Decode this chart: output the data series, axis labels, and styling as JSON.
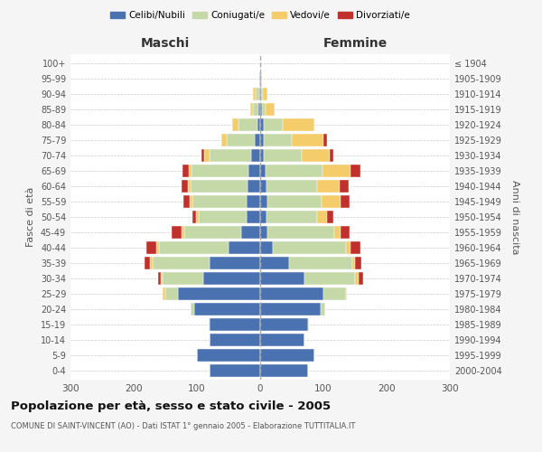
{
  "age_groups": [
    "0-4",
    "5-9",
    "10-14",
    "15-19",
    "20-24",
    "25-29",
    "30-34",
    "35-39",
    "40-44",
    "45-49",
    "50-54",
    "55-59",
    "60-64",
    "65-69",
    "70-74",
    "75-79",
    "80-84",
    "85-89",
    "90-94",
    "95-99",
    "100+"
  ],
  "birth_years": [
    "2000-2004",
    "1995-1999",
    "1990-1994",
    "1985-1989",
    "1980-1984",
    "1975-1979",
    "1970-1974",
    "1965-1969",
    "1960-1964",
    "1955-1959",
    "1950-1954",
    "1945-1949",
    "1940-1944",
    "1935-1939",
    "1930-1934",
    "1925-1929",
    "1920-1924",
    "1915-1919",
    "1910-1914",
    "1905-1909",
    "≤ 1904"
  ],
  "colors": {
    "celibi": "#4a72b0",
    "coniugati": "#c5d9a8",
    "vedovi": "#f5cc6a",
    "divorziati": "#c0312b"
  },
  "maschi": {
    "celibi": [
      80,
      100,
      80,
      80,
      105,
      130,
      90,
      80,
      50,
      30,
      22,
      22,
      20,
      18,
      15,
      8,
      5,
      3,
      2,
      1,
      0
    ],
    "coniugati": [
      0,
      0,
      0,
      2,
      5,
      20,
      65,
      90,
      110,
      90,
      75,
      85,
      90,
      90,
      65,
      45,
      30,
      8,
      5,
      0,
      0
    ],
    "vedovi": [
      0,
      0,
      0,
      0,
      0,
      5,
      2,
      5,
      5,
      5,
      5,
      5,
      5,
      5,
      8,
      8,
      10,
      5,
      5,
      0,
      0
    ],
    "divorziati": [
      0,
      0,
      0,
      0,
      0,
      0,
      5,
      8,
      15,
      15,
      5,
      10,
      10,
      10,
      5,
      0,
      0,
      0,
      0,
      0,
      0
    ]
  },
  "femmine": {
    "celibi": [
      75,
      85,
      70,
      75,
      95,
      100,
      70,
      45,
      20,
      12,
      10,
      12,
      10,
      8,
      5,
      5,
      5,
      3,
      2,
      1,
      0
    ],
    "coniugati": [
      0,
      0,
      0,
      2,
      8,
      35,
      80,
      100,
      115,
      105,
      80,
      85,
      80,
      90,
      60,
      45,
      30,
      5,
      2,
      0,
      0
    ],
    "vedovi": [
      0,
      0,
      0,
      0,
      0,
      2,
      5,
      5,
      8,
      10,
      15,
      30,
      35,
      45,
      45,
      50,
      50,
      15,
      8,
      2,
      0
    ],
    "divorziati": [
      0,
      0,
      0,
      0,
      0,
      0,
      8,
      10,
      15,
      15,
      10,
      15,
      15,
      15,
      5,
      5,
      0,
      0,
      0,
      0,
      0
    ]
  },
  "title": "Popolazione per età, sesso e stato civile - 2005",
  "subtitle": "COMUNE DI SAINT-VINCENT (AO) - Dati ISTAT 1° gennaio 2005 - Elaborazione TUTTITALIA.IT",
  "xlabel_left": "Maschi",
  "xlabel_right": "Femmine",
  "ylabel_left": "Fasce di età",
  "ylabel_right": "Anni di nascita",
  "xlim": 300,
  "legend_labels": [
    "Celibi/Nubili",
    "Coniugati/e",
    "Vedovi/e",
    "Divorziati/e"
  ],
  "bg_color": "#f5f5f5",
  "plot_bg": "#ffffff",
  "grid_color": "#cccccc"
}
